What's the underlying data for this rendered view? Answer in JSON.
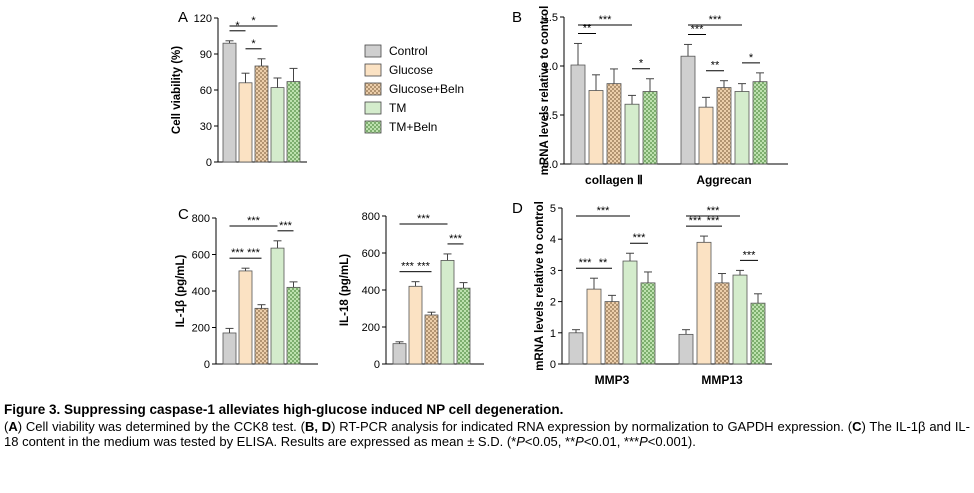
{
  "legend": {
    "items": [
      {
        "label": "Control",
        "fill": "#cfcfcf",
        "pattern": "solid"
      },
      {
        "label": "Glucose",
        "fill": "#fbe2c3",
        "pattern": "solid"
      },
      {
        "label": "Glucose+Beln",
        "fill": "#e9c8a5",
        "pattern": "dots"
      },
      {
        "label": "TM",
        "fill": "#d4eccc",
        "pattern": "solid"
      },
      {
        "label": "TM+Beln",
        "fill": "#b4dca4",
        "pattern": "dots"
      }
    ]
  },
  "caption": {
    "title": "Figure 3. Suppressing caspase-1 alleviates high-glucose induced NP cell degeneration.",
    "body_html": "(<b>A</b>) Cell viability was determined by the CCK8 test. (<b>B, D</b>) RT-PCR analysis for indicated RNA expression by normalization to GAPDH expression. (<b>C</b>) The IL-1β and IL-18 content in the medium was tested by ELISA. Results are expressed as mean ± S.D. (*<i>P</i>&lt;0.05, **<i>P</i>&lt;0.01, ***<i>P</i>&lt;0.001)."
  },
  "chart_data": [
    {
      "panel": "A",
      "type": "bar",
      "ylabel": "Cell viability (%)",
      "ylim": [
        0,
        120
      ],
      "yticks": [
        "0",
        "30",
        "60",
        "90",
        "120"
      ],
      "groups": [
        {
          "label": "",
          "values": [
            99,
            66,
            80,
            62,
            67
          ],
          "errors": [
            2,
            8,
            6,
            8,
            11
          ]
        }
      ],
      "annotations": [
        {
          "text": "*",
          "from": 0,
          "to": 3
        },
        {
          "text": "*",
          "from": 0,
          "to": 1
        },
        {
          "text": "*",
          "from": 1,
          "to": 2
        }
      ]
    },
    {
      "panel": "B",
      "type": "bar",
      "ylabel": "mRNA levels relative to control",
      "ylim": [
        0,
        1.5
      ],
      "yticks": [
        "0.0",
        "0.5",
        "1.0",
        "1.5"
      ],
      "groups": [
        {
          "label": "collagen Ⅱ",
          "values": [
            1.01,
            0.75,
            0.82,
            0.61,
            0.74
          ],
          "errors": [
            0.22,
            0.16,
            0.15,
            0.09,
            0.13
          ]
        },
        {
          "label": "Aggrecan",
          "values": [
            1.1,
            0.58,
            0.78,
            0.74,
            0.84
          ],
          "errors": [
            0.12,
            0.1,
            0.07,
            0.08,
            0.09
          ]
        }
      ],
      "annotations": [
        {
          "text": "***",
          "group": 0,
          "from": 0,
          "to": 3
        },
        {
          "text": "**",
          "group": 0,
          "from": 0,
          "to": 1
        },
        {
          "text": "*",
          "group": 0,
          "from": 3,
          "to": 4
        },
        {
          "text": "***",
          "group": 1,
          "from": 0,
          "to": 3
        },
        {
          "text": "***",
          "group": 1,
          "from": 0,
          "to": 1
        },
        {
          "text": "**",
          "group": 1,
          "from": 1,
          "to": 2
        },
        {
          "text": "*",
          "group": 1,
          "from": 3,
          "to": 4
        }
      ]
    },
    {
      "panel": "C",
      "type": "bar",
      "ylabel": "IL-1β (pg/mL)",
      "ylim": [
        0,
        800
      ],
      "yticks": [
        "0",
        "200",
        "400",
        "600",
        "800"
      ],
      "groups": [
        {
          "label": "",
          "values": [
            170,
            510,
            305,
            635,
            420
          ],
          "errors": [
            25,
            15,
            20,
            40,
            30
          ]
        }
      ],
      "annotations": [
        {
          "text": "***",
          "from": 0,
          "to": 3
        },
        {
          "text": "***",
          "from": 0,
          "to": 1
        },
        {
          "text": "***",
          "from": 1,
          "to": 2
        },
        {
          "text": "***",
          "from": 3,
          "to": 4
        }
      ]
    },
    {
      "panel": "",
      "type": "bar",
      "ylabel": "IL-18 (pg/mL)",
      "ylim": [
        0,
        800
      ],
      "yticks": [
        "0",
        "200",
        "400",
        "600",
        "800"
      ],
      "groups": [
        {
          "label": "",
          "values": [
            110,
            420,
            265,
            560,
            410
          ],
          "errors": [
            10,
            25,
            15,
            35,
            30
          ]
        }
      ],
      "annotations": [
        {
          "text": "***",
          "from": 0,
          "to": 3
        },
        {
          "text": "***",
          "from": 0,
          "to": 1
        },
        {
          "text": "***",
          "from": 1,
          "to": 2
        },
        {
          "text": "***",
          "from": 3,
          "to": 4
        }
      ]
    },
    {
      "panel": "D",
      "type": "bar",
      "ylabel": "mRNA levels relative to control",
      "ylim": [
        0,
        5
      ],
      "yticks": [
        "0",
        "1",
        "2",
        "3",
        "4",
        "5"
      ],
      "groups": [
        {
          "label": "MMP3",
          "values": [
            1.0,
            2.4,
            2.0,
            3.3,
            2.6
          ],
          "errors": [
            0.1,
            0.35,
            0.2,
            0.25,
            0.35
          ]
        },
        {
          "label": "MMP13",
          "values": [
            0.95,
            3.9,
            2.6,
            2.85,
            1.95
          ],
          "errors": [
            0.15,
            0.2,
            0.3,
            0.15,
            0.3
          ]
        }
      ],
      "annotations": [
        {
          "text": "***",
          "group": 0,
          "from": 0,
          "to": 3
        },
        {
          "text": "***",
          "group": 0,
          "from": 0,
          "to": 1
        },
        {
          "text": "**",
          "group": 0,
          "from": 1,
          "to": 2
        },
        {
          "text": "***",
          "group": 0,
          "from": 3,
          "to": 4
        },
        {
          "text": "***",
          "group": 1,
          "from": 0,
          "to": 3
        },
        {
          "text": "***",
          "group": 1,
          "from": 0,
          "to": 1
        },
        {
          "text": "***",
          "group": 1,
          "from": 1,
          "to": 2
        },
        {
          "text": "***",
          "group": 1,
          "from": 3,
          "to": 4
        }
      ]
    }
  ]
}
